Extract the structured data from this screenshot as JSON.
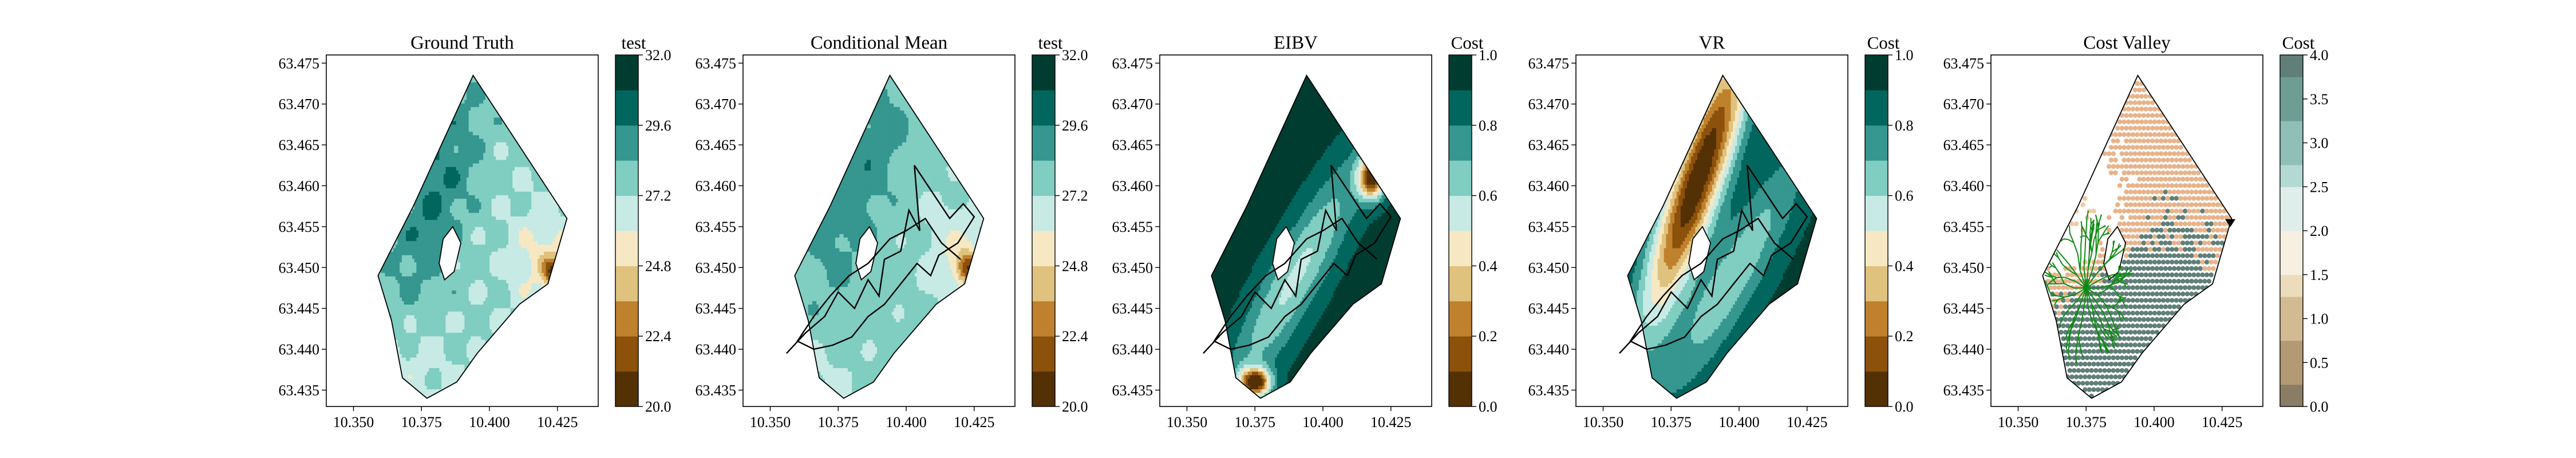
{
  "colors": {
    "brbg": [
      "#543005",
      "#8c510a",
      "#bf812d",
      "#dfc27d",
      "#f6e8c3",
      "#f5f5f5",
      "#c7eae5",
      "#80cdc1",
      "#35978f",
      "#01665e",
      "#003c30"
    ],
    "tree": "#0f8a14",
    "path": "#000000",
    "frame": "#000000"
  },
  "chart_data": [
    {
      "type": "heatmap",
      "title": "Ground Truth",
      "colorbar_label": "test",
      "colorbar_ticks": [
        "20.0",
        "22.4",
        "24.8",
        "27.2",
        "29.6",
        "32.0"
      ],
      "colorbar_range": [
        20.0,
        32.0
      ],
      "x_ticks": [
        "10.350",
        "10.375",
        "10.400",
        "10.425"
      ],
      "y_ticks": [
        "63.435",
        "63.440",
        "63.445",
        "63.450",
        "63.455",
        "63.460",
        "63.465",
        "63.470",
        "63.475"
      ],
      "xlim": [
        10.34,
        10.44
      ],
      "ylim": [
        63.433,
        63.476
      ],
      "field": "ground_truth"
    },
    {
      "type": "heatmap",
      "title": "Conditional Mean",
      "colorbar_label": "test",
      "colorbar_ticks": [
        "20.0",
        "22.4",
        "24.8",
        "27.2",
        "29.6",
        "32.0"
      ],
      "colorbar_range": [
        20.0,
        32.0
      ],
      "x_ticks": [
        "10.350",
        "10.375",
        "10.400",
        "10.425"
      ],
      "y_ticks": [
        "63.435",
        "63.440",
        "63.445",
        "63.450",
        "63.455",
        "63.460",
        "63.465",
        "63.470",
        "63.475"
      ],
      "xlim": [
        10.34,
        10.44
      ],
      "ylim": [
        63.433,
        63.476
      ],
      "field": "conditional_mean",
      "overlay": "path"
    },
    {
      "type": "heatmap",
      "title": "EIBV",
      "colorbar_label": "Cost",
      "colorbar_ticks": [
        "0.0",
        "0.2",
        "0.4",
        "0.6",
        "0.8",
        "1.0"
      ],
      "colorbar_range": [
        0.0,
        1.0
      ],
      "x_ticks": [
        "10.350",
        "10.375",
        "10.400",
        "10.425"
      ],
      "y_ticks": [
        "63.435",
        "63.440",
        "63.445",
        "63.450",
        "63.455",
        "63.460",
        "63.465",
        "63.470",
        "63.475"
      ],
      "xlim": [
        10.34,
        10.44
      ],
      "ylim": [
        63.433,
        63.476
      ],
      "field": "eibv",
      "overlay": "path"
    },
    {
      "type": "heatmap",
      "title": "VR",
      "colorbar_label": "Cost",
      "colorbar_ticks": [
        "0.0",
        "0.2",
        "0.4",
        "0.6",
        "0.8",
        "1.0"
      ],
      "colorbar_range": [
        0.0,
        1.0
      ],
      "x_ticks": [
        "10.350",
        "10.375",
        "10.400",
        "10.425"
      ],
      "y_ticks": [
        "63.435",
        "63.440",
        "63.445",
        "63.450",
        "63.455",
        "63.460",
        "63.465",
        "63.470",
        "63.475"
      ],
      "xlim": [
        10.34,
        10.44
      ],
      "ylim": [
        63.433,
        63.476
      ],
      "field": "vr",
      "overlay": "path"
    },
    {
      "type": "scatter",
      "title": "Cost Valley",
      "colorbar_label": "Cost",
      "colorbar_ticks": [
        "0.0",
        "0.5",
        "1.0",
        "1.5",
        "2.0",
        "2.5",
        "3.0",
        "3.5",
        "4.0"
      ],
      "colorbar_range": [
        0.0,
        4.0
      ],
      "x_ticks": [
        "10.350",
        "10.375",
        "10.400",
        "10.425"
      ],
      "y_ticks": [
        "63.435",
        "63.440",
        "63.445",
        "63.450",
        "63.455",
        "63.460",
        "63.465",
        "63.470",
        "63.475"
      ],
      "xlim": [
        10.34,
        10.44
      ],
      "ylim": [
        63.433,
        63.476
      ],
      "field": "cost_valley",
      "overlay": "tree",
      "tree_root": [
        10.375,
        63.4475
      ],
      "target_marker": [
        10.428,
        63.4555
      ]
    }
  ]
}
